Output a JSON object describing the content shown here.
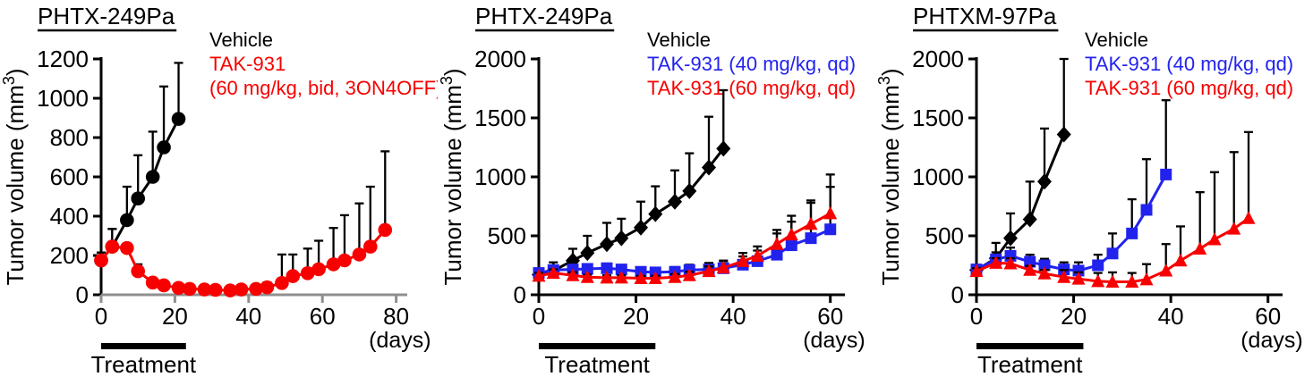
{
  "figure": {
    "background": "#ffffff",
    "text_color": "#000000"
  },
  "colors": {
    "black": "#000000",
    "red": "#f80000",
    "blue": "#2222ef",
    "gray_axis": "#8f8f8f"
  },
  "chart_data": [
    {
      "type": "line",
      "title": "PHTX-249Pa",
      "ylabel": {
        "prefix": "Tumor volume (mm",
        "sup": "3",
        "suffix": ")"
      },
      "xlabel": "(days)",
      "xlim": [
        0,
        83
      ],
      "ylim": [
        0,
        1200
      ],
      "xticks": [
        0,
        20,
        40,
        60,
        80
      ],
      "yticks": [
        0,
        200,
        400,
        600,
        800,
        1000,
        1200
      ],
      "x_axis_color": "#8f8f8f",
      "grid": false,
      "legend_position": "top-right",
      "legend": [
        {
          "text": "Vehicle",
          "color": "#000000"
        },
        {
          "text": "TAK-931",
          "color": "#f80000"
        },
        {
          "text": "(60 mg/kg, bid, 3ON4OFF)",
          "color": "#f80000"
        }
      ],
      "treatment": {
        "start": 0,
        "end": 23,
        "label": "Treatment"
      },
      "series": [
        {
          "name": "Vehicle",
          "color": "#000000",
          "marker": "circle",
          "x": [
            0,
            3,
            7,
            10,
            14,
            17,
            21
          ],
          "y": [
            175,
            245,
            380,
            490,
            600,
            750,
            895
          ],
          "err": [
            40,
            90,
            170,
            220,
            230,
            310,
            285
          ]
        },
        {
          "name": "TAK-931 (60 mg/kg, bid, 3ON4OFF)",
          "color": "#f80000",
          "marker": "circle",
          "x": [
            0,
            3,
            7,
            10,
            14,
            17,
            21,
            24,
            28,
            31,
            35,
            38,
            42,
            45,
            49,
            52,
            56,
            59,
            63,
            66,
            70,
            73,
            77
          ],
          "y": [
            175,
            245,
            238,
            120,
            62,
            48,
            35,
            30,
            27,
            25,
            22,
            27,
            30,
            38,
            60,
            95,
            110,
            130,
            155,
            175,
            205,
            245,
            330
          ],
          "err": [
            40,
            90,
            20,
            35,
            15,
            12,
            8,
            8,
            8,
            8,
            8,
            10,
            12,
            25,
            145,
            110,
            125,
            145,
            185,
            230,
            260,
            305,
            400
          ]
        }
      ]
    },
    {
      "type": "line",
      "title": "PHTX-249Pa",
      "ylabel": {
        "prefix": "Tumor volume (mm",
        "sup": "3",
        "suffix": ")"
      },
      "xlabel": "(days)",
      "xlim": [
        0,
        63
      ],
      "ylim": [
        0,
        2000
      ],
      "xticks": [
        0,
        20,
        40,
        60
      ],
      "yticks": [
        0,
        500,
        1000,
        1500,
        2000
      ],
      "x_axis_color": "#000000",
      "grid": false,
      "legend_position": "top-right",
      "legend": [
        {
          "text": "Vehicle",
          "color": "#000000"
        },
        {
          "text": "TAK-931 (40 mg/kg, qd)",
          "color": "#2222ef"
        },
        {
          "text": "TAK-931 (60 mg/kg, qd)",
          "color": "#f80000"
        }
      ],
      "treatment": {
        "start": 0,
        "end": 24,
        "label": "Treatment"
      },
      "series": [
        {
          "name": "Vehicle",
          "color": "#000000",
          "marker": "diamond",
          "x": [
            0,
            3,
            7,
            10,
            14,
            17,
            21,
            24,
            28,
            31,
            35,
            38
          ],
          "y": [
            170,
            205,
            290,
            355,
            430,
            480,
            570,
            685,
            790,
            880,
            1080,
            1240
          ],
          "err": [
            45,
            70,
            100,
            145,
            180,
            165,
            220,
            235,
            265,
            320,
            430,
            495
          ]
        },
        {
          "name": "TAK-931 (40 mg/kg, qd)",
          "color": "#2222ef",
          "marker": "square",
          "x": [
            0,
            3,
            7,
            10,
            14,
            17,
            21,
            24,
            28,
            31,
            35,
            38,
            42,
            45,
            49,
            52,
            56,
            60
          ],
          "y": [
            185,
            210,
            215,
            220,
            225,
            215,
            195,
            190,
            195,
            210,
            215,
            225,
            255,
            285,
            340,
            420,
            480,
            555
          ],
          "err": [
            30,
            35,
            35,
            40,
            40,
            35,
            30,
            30,
            40,
            45,
            55,
            60,
            70,
            90,
            180,
            200,
            320,
            360
          ]
        },
        {
          "name": "TAK-931 (60 mg/kg, qd)",
          "color": "#f80000",
          "marker": "triangle",
          "x": [
            0,
            3,
            7,
            10,
            14,
            17,
            21,
            24,
            28,
            31,
            35,
            38,
            42,
            45,
            49,
            52,
            56,
            60
          ],
          "y": [
            160,
            185,
            165,
            150,
            145,
            145,
            140,
            140,
            150,
            165,
            200,
            230,
            285,
            330,
            430,
            510,
            600,
            690
          ],
          "err": [
            25,
            30,
            25,
            20,
            20,
            20,
            20,
            20,
            25,
            30,
            40,
            60,
            70,
            80,
            120,
            160,
            180,
            330
          ]
        }
      ]
    },
    {
      "type": "line",
      "title": "PHTXM-97Pa",
      "ylabel": {
        "prefix": "Tumor volume (mm",
        "sup": "3",
        "suffix": ")"
      },
      "xlabel": "(days)",
      "xlim": [
        0,
        63
      ],
      "ylim": [
        0,
        2000
      ],
      "xticks": [
        0,
        20,
        40,
        60
      ],
      "yticks": [
        0,
        500,
        1000,
        1500,
        2000
      ],
      "x_axis_color": "#000000",
      "grid": false,
      "legend_position": "top-right",
      "legend": [
        {
          "text": "Vehicle",
          "color": "#000000"
        },
        {
          "text": "TAK-931 (40 mg/kg, qd)",
          "color": "#2222ef"
        },
        {
          "text": "TAK-931 (60 mg/kg, qd)",
          "color": "#f80000"
        }
      ],
      "treatment": {
        "start": 0,
        "end": 22,
        "label": "Treatment"
      },
      "series": [
        {
          "name": "Vehicle",
          "color": "#000000",
          "marker": "diamond",
          "x": [
            0,
            4,
            7,
            11,
            14,
            18
          ],
          "y": [
            210,
            310,
            480,
            640,
            960,
            1360
          ],
          "err": [
            35,
            130,
            210,
            320,
            450,
            640
          ]
        },
        {
          "name": "TAK-931 (40 mg/kg, qd)",
          "color": "#2222ef",
          "marker": "square",
          "x": [
            0,
            4,
            7,
            11,
            14,
            18,
            21,
            25,
            28,
            32,
            35,
            39
          ],
          "y": [
            215,
            300,
            330,
            280,
            250,
            215,
            205,
            250,
            350,
            520,
            720,
            1020
          ],
          "err": [
            30,
            60,
            70,
            60,
            55,
            60,
            70,
            90,
            170,
            290,
            430,
            630
          ]
        },
        {
          "name": "TAK-931 (60 mg/kg, qd)",
          "color": "#f80000",
          "marker": "triangle",
          "x": [
            0,
            4,
            7,
            11,
            14,
            18,
            21,
            25,
            28,
            32,
            35,
            39,
            42,
            46,
            49,
            53,
            56
          ],
          "y": [
            200,
            270,
            265,
            210,
            180,
            150,
            135,
            115,
            110,
            110,
            130,
            205,
            290,
            390,
            470,
            560,
            650
          ],
          "err": [
            25,
            40,
            45,
            35,
            30,
            60,
            55,
            70,
            80,
            75,
            130,
            225,
            290,
            480,
            570,
            650,
            730
          ]
        }
      ]
    }
  ]
}
